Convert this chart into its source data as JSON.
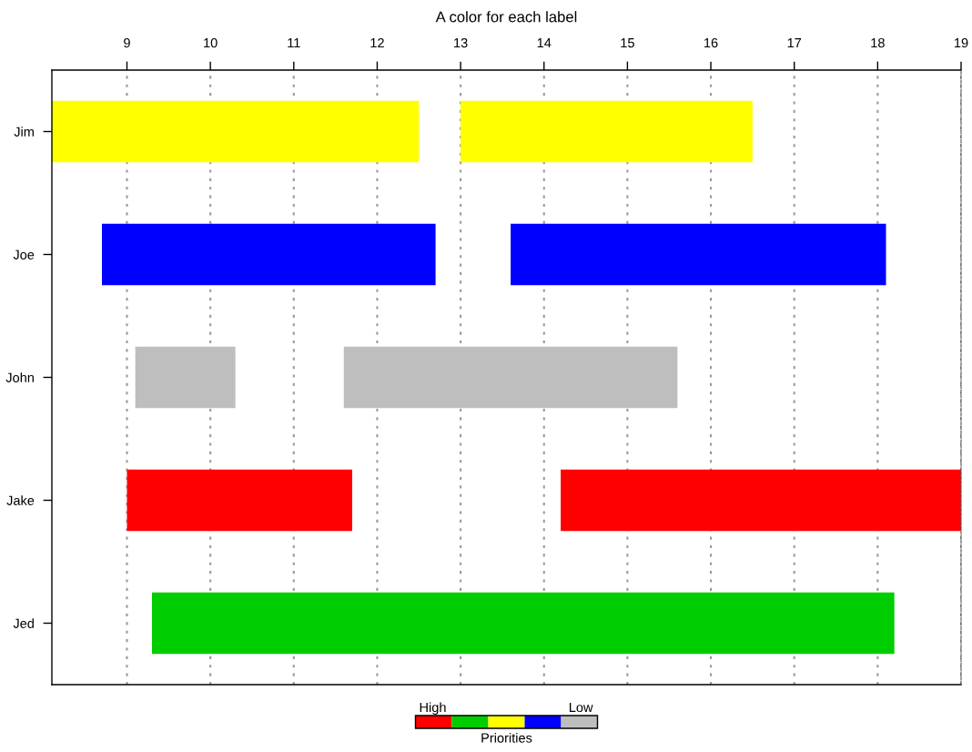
{
  "chart_data": {
    "type": "bar",
    "orientation": "horizontal",
    "title": "A color for each label",
    "categories": [
      "Jim",
      "Joe",
      "John",
      "Jake",
      "Jed"
    ],
    "series": [
      {
        "color": "#ff0000",
        "values": [
          null,
          null,
          null,
          2.7,
          null
        ],
        "base": [
          null,
          null,
          null,
          9.0,
          null
        ]
      },
      {
        "color": "#ff0000",
        "values": [
          null,
          null,
          null,
          4.8,
          null
        ],
        "base": [
          null,
          null,
          null,
          14.2,
          null
        ]
      },
      {
        "color": "#00cd00",
        "values": [
          null,
          null,
          null,
          null,
          8.9
        ],
        "base": [
          null,
          null,
          null,
          null,
          9.3
        ]
      },
      {
        "color": "#ffff00",
        "values": [
          4.4,
          null,
          null,
          null,
          null
        ],
        "base": [
          8.1,
          null,
          null,
          null,
          null
        ]
      },
      {
        "color": "#ffff00",
        "values": [
          3.5,
          null,
          null,
          null,
          null
        ],
        "base": [
          13.0,
          null,
          null,
          null,
          null
        ]
      },
      {
        "color": "#0000ff",
        "values": [
          null,
          4.0,
          null,
          null,
          null
        ],
        "base": [
          null,
          8.7,
          null,
          null,
          null
        ]
      },
      {
        "color": "#0000ff",
        "values": [
          null,
          4.5,
          null,
          null,
          null
        ],
        "base": [
          null,
          13.6,
          null,
          null,
          null
        ]
      },
      {
        "color": "#bebebe",
        "values": [
          null,
          null,
          1.2,
          null,
          null
        ],
        "base": [
          null,
          null,
          9.1,
          null,
          null
        ]
      },
      {
        "color": "#bebebe",
        "values": [
          null,
          null,
          4.0,
          null,
          null
        ],
        "base": [
          null,
          null,
          11.6,
          null,
          null
        ]
      }
    ],
    "xlim": [
      8.1,
      19
    ],
    "xticks": [
      9,
      10,
      11,
      12,
      13,
      14,
      15,
      16,
      17,
      18,
      19
    ],
    "grid": "x",
    "annotations": [
      "High",
      "Low",
      "Priorities"
    ]
  }
}
